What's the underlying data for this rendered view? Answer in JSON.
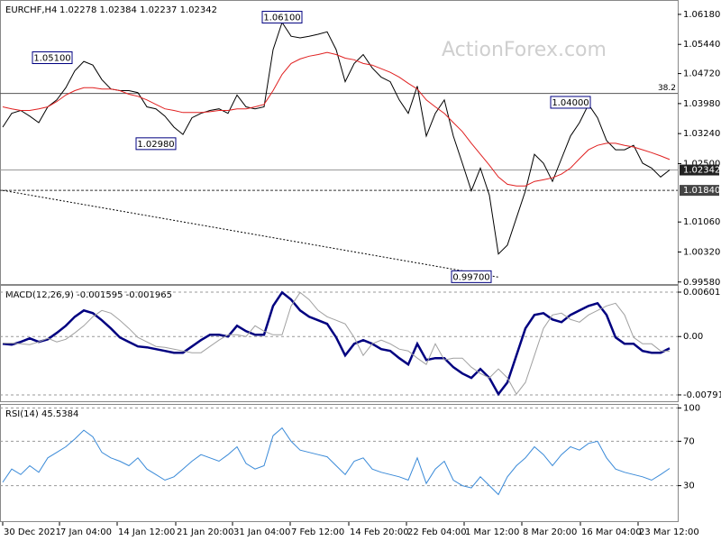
{
  "watermark": "ActionForex.com",
  "chart_data": [
    {
      "type": "line",
      "title": "EURCHF,H4",
      "subtitle": "1.02278 1.02384 1.02237 1.02342",
      "x": [
        0,
        1,
        2,
        3,
        4,
        5,
        6,
        7,
        8,
        9,
        10,
        11,
        12,
        13,
        14,
        15,
        16,
        17,
        18,
        19,
        20,
        21,
        22,
        23,
        24,
        25,
        26,
        27,
        28,
        29,
        30,
        31,
        32,
        33,
        34,
        35,
        36,
        37,
        38,
        39,
        40,
        41,
        42,
        43,
        44,
        45,
        46,
        47,
        48,
        49,
        50,
        51,
        52,
        53,
        54,
        55,
        56,
        57,
        58,
        59,
        60,
        61,
        62,
        63,
        64,
        65,
        66,
        67,
        68,
        69,
        70,
        71,
        72,
        73,
        74
      ],
      "xlim": [
        0,
        74
      ],
      "ylim": [
        0.9953,
        1.0649
      ],
      "yticks": [
        {
          "value": 1.0618,
          "label": "1.06180"
        },
        {
          "value": 1.0544,
          "label": "1.05440"
        },
        {
          "value": 1.0472,
          "label": "1.04720"
        },
        {
          "value": 1.0398,
          "label": "1.03980"
        },
        {
          "value": 1.0324,
          "label": "1.03240"
        },
        {
          "value": 1.025,
          "label": "1.02500"
        },
        {
          "value": 1.0106,
          "label": "1.01060"
        },
        {
          "value": 1.0032,
          "label": "1.00320"
        },
        {
          "value": 0.9958,
          "label": "0.99580"
        }
      ],
      "series": [
        {
          "color": "#000000",
          "values": [
            1.034,
            1.0374,
            1.0381,
            1.0367,
            1.0351,
            1.039,
            1.0407,
            1.0437,
            1.0479,
            1.0502,
            1.0493,
            1.0457,
            1.0434,
            1.043,
            1.043,
            1.0425,
            1.039,
            1.0385,
            1.0367,
            1.034,
            1.0322,
            1.0363,
            1.0374,
            1.0381,
            1.0385,
            1.0374,
            1.0419,
            1.039,
            1.0385,
            1.039,
            1.0531,
            1.0598,
            1.0564,
            1.056,
            1.0564,
            1.0569,
            1.0575,
            1.0531,
            1.0452,
            1.0497,
            1.0519,
            1.0486,
            1.0463,
            1.0452,
            1.0407,
            1.0374,
            1.0441,
            1.0318,
            1.0374,
            1.0407,
            1.0318,
            1.0251,
            1.0183,
            1.0239,
            1.0172,
            1.0027,
            1.0049,
            1.0116,
            1.0183,
            1.0273,
            1.0251,
            1.0206,
            1.0262,
            1.0318,
            1.0351,
            1.0396,
            1.0363,
            1.0307,
            1.0284,
            1.0284,
            1.0295,
            1.0251,
            1.0239,
            1.0217,
            1.02342
          ]
        },
        {
          "color": "#e02020",
          "values": [
            1.039,
            1.0385,
            1.0381,
            1.0381,
            1.0385,
            1.039,
            1.0403,
            1.0419,
            1.043,
            1.0437,
            1.0437,
            1.0434,
            1.0434,
            1.043,
            1.0421,
            1.0416,
            1.0407,
            1.0396,
            1.0385,
            1.0381,
            1.0376,
            1.0376,
            1.0376,
            1.0378,
            1.0381,
            1.0381,
            1.0385,
            1.0385,
            1.039,
            1.0396,
            1.043,
            1.047,
            1.0497,
            1.0508,
            1.0515,
            1.0519,
            1.0524,
            1.0519,
            1.051,
            1.0506,
            1.0497,
            1.0493,
            1.0484,
            1.0475,
            1.0463,
            1.0448,
            1.0434,
            1.0407,
            1.039,
            1.0374,
            1.0351,
            1.0329,
            1.03,
            1.0273,
            1.0246,
            1.0217,
            1.0199,
            1.0195,
            1.0195,
            1.0206,
            1.021,
            1.0215,
            1.0224,
            1.0239,
            1.0262,
            1.0284,
            1.0295,
            1.03,
            1.03,
            1.0295,
            1.0291,
            1.0284,
            1.0277,
            1.0269,
            1.026
          ]
        }
      ],
      "hlines": [
        {
          "label": "38.2",
          "value": 1.0423,
          "color": "#555555"
        },
        {
          "label": "1.02342",
          "value": 1.02342,
          "color": "#999999"
        },
        {
          "label": "1.01840",
          "value": 1.0184,
          "color": "#333333"
        }
      ],
      "trendline": {
        "x": [
          0,
          55
        ],
        "values": [
          1.0184,
          0.997
        ]
      },
      "annotations": [
        {
          "label": "1.06100",
          "value": 1.061,
          "x": 31
        },
        {
          "label": "1.05100",
          "value": 1.051,
          "x": 5.5
        },
        {
          "label": "1.02980",
          "value": 1.0298,
          "x": 17
        },
        {
          "label": "1.04000",
          "value": 1.04,
          "x": 63
        },
        {
          "label": "0.99700",
          "value": 0.997,
          "x": 52
        }
      ]
    },
    {
      "type": "line",
      "title": "MACD(12,26,9) -0.001595 -0.001965",
      "xlim": [
        0,
        74
      ],
      "ylim": [
        -0.00877,
        0.00675
      ],
      "yticks": [
        0.006017,
        {
          "value": 0,
          "label": "0.00"
        },
        -0.007911
      ],
      "series": [
        {
          "color": "#000080",
          "width": 2.5,
          "values": [
            -0.00098,
            -0.0011,
            -0.00073,
            -0.00024,
            -0.00073,
            -0.00037,
            0.00049,
            0.00146,
            0.00268,
            0.00354,
            0.00317,
            0.0022,
            0.0011,
            -0.00012,
            -0.00073,
            -0.00134,
            -0.00146,
            -0.00171,
            -0.00195,
            -0.0022,
            -0.0022,
            -0.00134,
            -0.00049,
            0.00024,
            0.00024,
            0,
            0.00146,
            0.00073,
            0.00024,
            0.00024,
            0.00415,
            0.00598,
            0.005,
            0.00354,
            0.00268,
            0.0022,
            0.00171,
            -0.00012,
            -0.00256,
            -0.00098,
            -0.00049,
            -0.00098,
            -0.00171,
            -0.00195,
            -0.00293,
            -0.00378,
            -0.00098,
            -0.00317,
            -0.00293,
            -0.00293,
            -0.00415,
            -0.005,
            -0.00561,
            -0.00439,
            -0.00561,
            -0.00781,
            -0.00622,
            -0.00256,
            0.0011,
            0.00293,
            0.00317,
            0.00232,
            0.00195,
            0.00293,
            0.00354,
            0.00415,
            0.00451,
            0.00293,
            -0.00012,
            -0.00098,
            -0.00098,
            -0.00195,
            -0.0022,
            -0.0022,
            -0.0016
          ]
        },
        {
          "color": "#a0a0a0",
          "width": 1,
          "values": [
            -0.0009,
            -0.0009,
            -0.00098,
            -0.0011,
            -0.00073,
            -0.00024,
            -0.00073,
            -0.00037,
            0.00049,
            0.00146,
            0.00268,
            0.00354,
            0.00317,
            0.0022,
            0.0011,
            -0.00012,
            -0.00073,
            -0.00134,
            -0.00146,
            -0.00171,
            -0.00195,
            -0.0022,
            -0.0022,
            -0.00134,
            -0.00049,
            0.00024,
            0.00024,
            0,
            0.00146,
            0.00073,
            0.00024,
            0.00024,
            0.00415,
            0.00598,
            0.005,
            0.00354,
            0.00268,
            0.0022,
            0.00171,
            -0.00012,
            -0.00256,
            -0.00098,
            -0.00049,
            -0.00098,
            -0.00171,
            -0.00195,
            -0.00293,
            -0.00378,
            -0.00098,
            -0.00317,
            -0.00293,
            -0.00293,
            -0.00415,
            -0.005,
            -0.00561,
            -0.00439,
            -0.00561,
            -0.00781,
            -0.00622,
            -0.00256,
            0.0011,
            0.00293,
            0.00317,
            0.00232,
            0.00195,
            0.00293,
            0.00354,
            0.00415,
            0.00451,
            0.00293,
            -0.00012,
            -0.00098,
            -0.00098,
            -0.00195,
            -0.00197
          ]
        }
      ]
    },
    {
      "type": "line",
      "title": "RSI(14) 45.5384",
      "xlim": [
        0,
        74
      ],
      "ylim": [
        -2,
        102
      ],
      "yticks": [
        100,
        70,
        30
      ],
      "xticks": [
        {
          "value": 0,
          "label": "30 Dec 2021"
        },
        {
          "value": 6.3,
          "label": "7 Jan 04:00"
        },
        {
          "value": 12.7,
          "label": "14 Jan 12:00"
        },
        {
          "value": 19.2,
          "label": "21 Jan 20:00"
        },
        {
          "value": 25.5,
          "label": "31 Jan 04:00"
        },
        {
          "value": 31.9,
          "label": "7 Feb 12:00"
        },
        {
          "value": 38.4,
          "label": "14 Feb 20:00"
        },
        {
          "value": 44.8,
          "label": "22 Feb 04:00"
        },
        {
          "value": 51.2,
          "label": "1 Mar 12:00"
        },
        {
          "value": 57.6,
          "label": "8 Mar 20:00"
        },
        {
          "value": 64.1,
          "label": "16 Mar 04:00"
        },
        {
          "value": 70.5,
          "label": "23 Mar 12:00"
        }
      ],
      "series": [
        {
          "color": "#3a8ad8",
          "width": 1,
          "values": [
            33,
            45,
            40,
            48,
            42,
            55,
            60,
            65,
            72,
            80,
            74,
            60,
            55,
            52,
            48,
            55,
            45,
            40,
            35,
            38,
            45,
            52,
            58,
            55,
            52,
            58,
            65,
            50,
            45,
            48,
            75,
            82,
            70,
            62,
            60,
            58,
            56,
            48,
            40,
            52,
            55,
            45,
            42,
            40,
            38,
            35,
            55,
            32,
            45,
            52,
            35,
            30,
            28,
            38,
            30,
            22,
            38,
            48,
            55,
            65,
            58,
            48,
            58,
            65,
            62,
            68,
            70,
            55,
            45,
            42,
            40,
            38,
            35,
            40,
            45.5384
          ]
        }
      ]
    }
  ]
}
